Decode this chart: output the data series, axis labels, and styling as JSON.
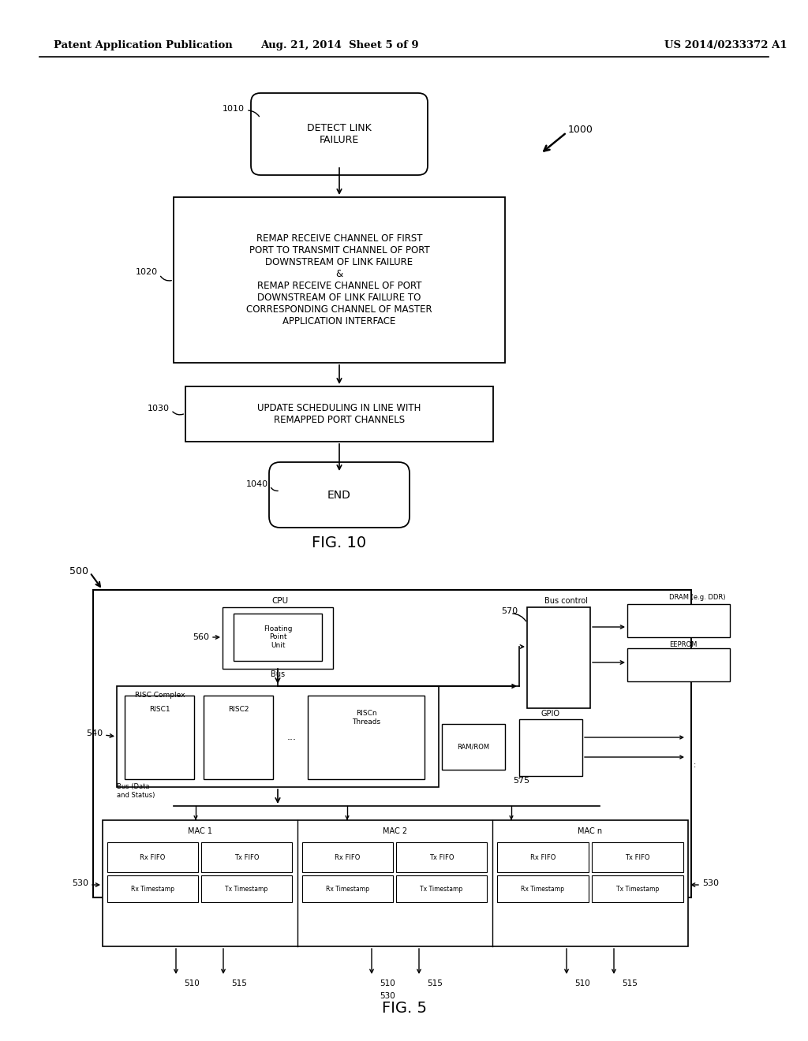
{
  "bg_color": "#ffffff",
  "header_left": "Patent Application Publication",
  "header_mid": "Aug. 21, 2014  Sheet 5 of 9",
  "header_right": "US 2014/0233372 A1"
}
